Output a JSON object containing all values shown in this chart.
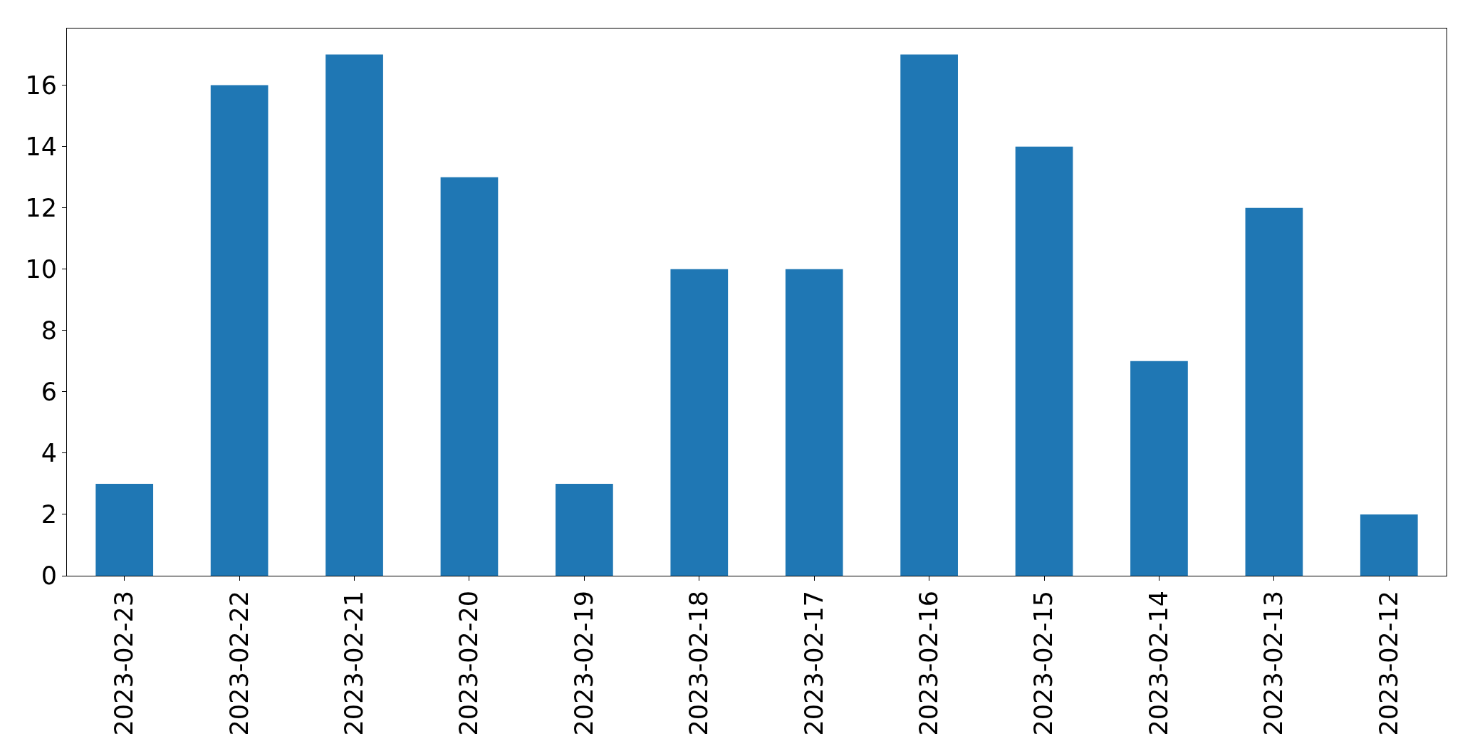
{
  "chart_data": {
    "type": "bar",
    "categories": [
      "2023-02-23",
      "2023-02-22",
      "2023-02-21",
      "2023-02-20",
      "2023-02-19",
      "2023-02-18",
      "2023-02-17",
      "2023-02-16",
      "2023-02-15",
      "2023-02-14",
      "2023-02-13",
      "2023-02-12"
    ],
    "values": [
      3,
      16,
      17,
      13,
      3,
      10,
      10,
      17,
      14,
      7,
      12,
      2
    ],
    "color": "#1f77b4",
    "ylim": [
      0,
      17.85
    ],
    "yticks": [
      0,
      2,
      4,
      6,
      8,
      10,
      12,
      14,
      16
    ]
  }
}
